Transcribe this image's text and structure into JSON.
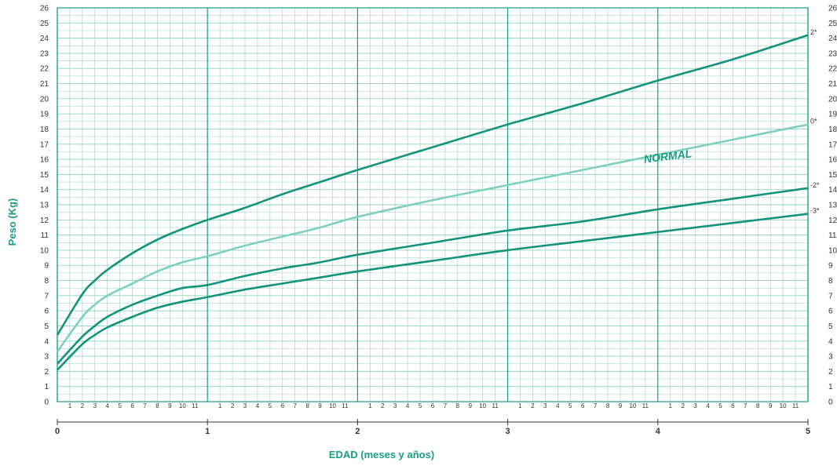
{
  "colors": {
    "grid": "#8fd3c1",
    "grid_major": "#1a9d86",
    "dark_curve": "#13937c",
    "light_curve": "#7fd0bd",
    "label": "#1a9d86",
    "text": "#333333"
  },
  "chart_data": {
    "type": "line",
    "title": "",
    "xlabel": "EDAD (meses y años)",
    "ylabel": "Peso (Kg)",
    "xlim": [
      0,
      5
    ],
    "ylim": [
      0,
      26
    ],
    "x_ticks": [
      "0",
      "1",
      "2",
      "3",
      "4",
      "5"
    ],
    "month_ticks": [
      "1",
      "2",
      "3",
      "4",
      "5",
      "6",
      "7",
      "8",
      "9",
      "10",
      "11"
    ],
    "y_ticks": [
      "0",
      "1",
      "2",
      "3",
      "4",
      "5",
      "6",
      "7",
      "8",
      "9",
      "10",
      "11",
      "12",
      "13",
      "14",
      "15",
      "16",
      "17",
      "18",
      "19",
      "20",
      "21",
      "22",
      "23",
      "24",
      "25",
      "26"
    ],
    "grid": true,
    "annotations": [
      "NORMAL"
    ],
    "series": [
      {
        "name": "2*",
        "style": "dark",
        "x": [
          0,
          0.167,
          0.25,
          0.333,
          0.5,
          0.667,
          0.833,
          1,
          1.25,
          1.5,
          1.75,
          2,
          2.5,
          3,
          3.5,
          4,
          4.5,
          5
        ],
        "y": [
          4.4,
          7.1,
          8.0,
          8.7,
          9.8,
          10.7,
          11.4,
          12.0,
          12.8,
          13.7,
          14.5,
          15.3,
          16.8,
          18.3,
          19.7,
          21.2,
          22.6,
          24.2
        ]
      },
      {
        "name": "0*",
        "style": "light",
        "x": [
          0,
          0.167,
          0.25,
          0.333,
          0.5,
          0.667,
          0.833,
          1,
          1.25,
          1.5,
          1.75,
          2,
          2.5,
          3,
          3.5,
          4,
          4.5,
          5
        ],
        "y": [
          3.3,
          5.6,
          6.4,
          7.0,
          7.8,
          8.6,
          9.2,
          9.6,
          10.3,
          10.9,
          11.5,
          12.2,
          13.3,
          14.3,
          15.3,
          16.3,
          17.3,
          18.3
        ]
      },
      {
        "name": "-2*",
        "style": "dark",
        "x": [
          0,
          0.167,
          0.25,
          0.333,
          0.5,
          0.667,
          0.833,
          1,
          1.25,
          1.5,
          1.75,
          2,
          2.5,
          3,
          3.5,
          4,
          4.5,
          5
        ],
        "y": [
          2.5,
          4.3,
          5.0,
          5.6,
          6.4,
          7.0,
          7.5,
          7.7,
          8.3,
          8.8,
          9.2,
          9.7,
          10.5,
          11.3,
          11.9,
          12.7,
          13.4,
          14.1
        ]
      },
      {
        "name": "-3*",
        "style": "dark",
        "x": [
          0,
          0.167,
          0.25,
          0.333,
          0.5,
          0.667,
          0.833,
          1,
          1.25,
          1.5,
          1.75,
          2,
          2.5,
          3,
          3.5,
          4,
          4.5,
          5
        ],
        "y": [
          2.1,
          3.8,
          4.4,
          4.9,
          5.6,
          6.2,
          6.6,
          6.9,
          7.4,
          7.8,
          8.2,
          8.6,
          9.3,
          10.0,
          10.6,
          11.2,
          11.8,
          12.4
        ]
      }
    ]
  }
}
